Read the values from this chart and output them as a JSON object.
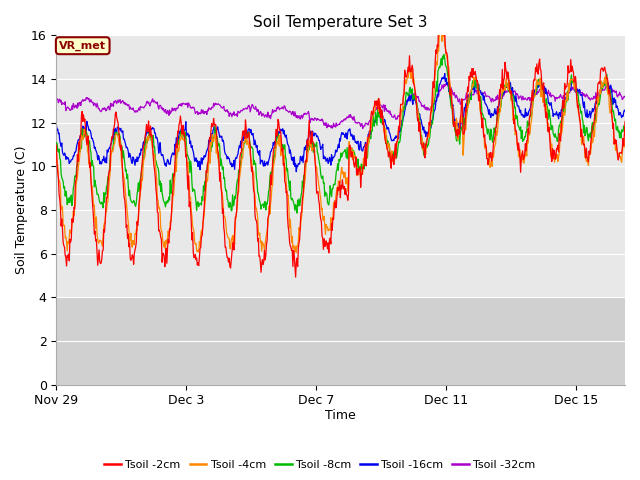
{
  "title": "Soil Temperature Set 3",
  "xlabel": "Time",
  "ylabel": "Soil Temperature (C)",
  "ylim": [
    0,
    16
  ],
  "yticks": [
    0,
    2,
    4,
    6,
    8,
    10,
    12,
    14,
    16
  ],
  "plot_bg_color": "#e8e8e8",
  "lower_bg_color": "#d0d0d0",
  "annotation_text": "VR_met",
  "annotation_box_color": "#ffffcc",
  "annotation_border_color": "#8B0000",
  "colors": {
    "Tsoil -2cm": "#ff0000",
    "Tsoil -4cm": "#ff8800",
    "Tsoil -8cm": "#00bb00",
    "Tsoil -16cm": "#0000ee",
    "Tsoil -32cm": "#aa00cc"
  },
  "legend_labels": [
    "Tsoil -2cm",
    "Tsoil -4cm",
    "Tsoil -8cm",
    "Tsoil -16cm",
    "Tsoil -32cm"
  ],
  "x_tick_labels": [
    "Nov 29",
    "Dec 3",
    "Dec 7",
    "Dec 11",
    "Dec 15"
  ],
  "x_tick_positions": [
    0,
    4,
    8,
    12,
    16
  ],
  "xlim": [
    0,
    17.5
  ],
  "total_days": 17.5,
  "figsize": [
    6.4,
    4.8
  ],
  "dpi": 100
}
